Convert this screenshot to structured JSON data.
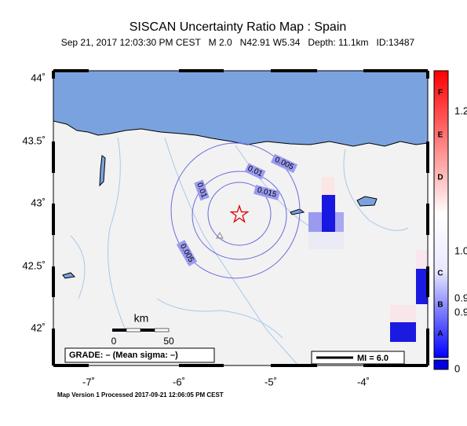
{
  "header": {
    "title": "SISCAN Uncertainty Ratio Map : Spain",
    "subtitle": "Sep 21, 2017 12:03:30 PM CEST   M 2.0   N42.91 W5.34   Depth: 11.1km   ID:13487"
  },
  "map": {
    "lat_labels": [
      "44˚",
      "43.5˚",
      "43˚",
      "42.5˚",
      "42˚"
    ],
    "lon_labels": [
      "-7˚",
      "-6˚",
      "-5˚",
      "-4˚"
    ],
    "contour_labels": [
      "0.005",
      "0.01",
      "0.015",
      "0.01",
      "0.005"
    ]
  },
  "scale_bar": {
    "unit": "km",
    "labels": [
      "0",
      "50"
    ]
  },
  "grade": "GRADE: – (Mean sigma: –)",
  "mi_legend": "MI = 6.0",
  "colorbar": {
    "grades": [
      "F",
      "E",
      "D",
      "C",
      "B",
      "A"
    ],
    "values": [
      "1.2",
      "1.0",
      "0.9",
      "0.9",
      "0"
    ]
  },
  "footer": "Map Version 1 Processed 2017-09-21 12:06:05 PM CEST"
}
